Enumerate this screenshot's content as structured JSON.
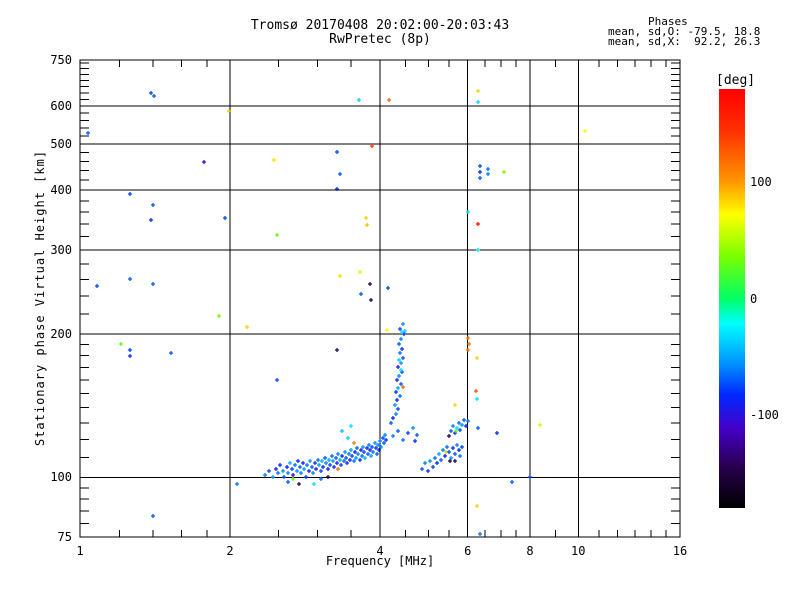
{
  "title": "Tromsø 20170408 20:02:00-20:03:43",
  "subtitle": "RwPretec (8p)",
  "stats": {
    "header": "Phases",
    "line_o": "mean, sd,O: -79.5, 18.8",
    "line_x": "mean, sd,X:  92.2, 26.3"
  },
  "chart_data": {
    "type": "scatter",
    "title": "Tromsø 20170408 20:02:00-20:03:43",
    "subtitle": "RwPretec (8p)",
    "xlabel": "Frequency [MHz]",
    "ylabel": "Stationary phase Virtual Height [km]",
    "x_scale": "log",
    "y_scale": "log",
    "xlim": [
      1,
      16
    ],
    "ylim": [
      75,
      750
    ],
    "x_ticks": [
      1,
      2,
      4,
      6,
      8,
      10,
      16
    ],
    "y_ticks": [
      75,
      100,
      200,
      300,
      400,
      500,
      600,
      750
    ],
    "x_gridlines": [
      2,
      4,
      6,
      8,
      10
    ],
    "y_gridlines": [
      100,
      200,
      300,
      400,
      500,
      600
    ],
    "x_minor_ticks": [
      1.2,
      1.4,
      1.6,
      1.8,
      2.5,
      3,
      3.5,
      4.5,
      5,
      5.5,
      6.5,
      7,
      7.5,
      9,
      11,
      12,
      13,
      14,
      15
    ],
    "y_minor_ticks": [
      80,
      85,
      90,
      95,
      110,
      120,
      130,
      140,
      150,
      160,
      170,
      180,
      190,
      220,
      240,
      260,
      280,
      320,
      340,
      360,
      380,
      420,
      440,
      460,
      480,
      520,
      540,
      560,
      580,
      620,
      640,
      660,
      680,
      700,
      720,
      740
    ],
    "grid": true,
    "colorbar": {
      "label": "[deg]",
      "ticks": [
        100,
        0,
        -100
      ],
      "range": [
        -180,
        180
      ],
      "stops": [
        [
          0.0,
          "#ff0000"
        ],
        [
          0.1,
          "#ff3000"
        ],
        [
          0.22,
          "#ff9600"
        ],
        [
          0.3,
          "#ffff00"
        ],
        [
          0.4,
          "#78ff00"
        ],
        [
          0.5,
          "#00ff64"
        ],
        [
          0.56,
          "#00ffff"
        ],
        [
          0.66,
          "#008cff"
        ],
        [
          0.73,
          "#0028ff"
        ],
        [
          0.81,
          "#4600c8"
        ],
        [
          0.9,
          "#280050"
        ],
        [
          1.0,
          "#000000"
        ]
      ]
    },
    "points_format": [
      "frequency_MHz",
      "virtual_height_km",
      "phase_deg"
    ],
    "points": [
      [
        2.35,
        101,
        -60
      ],
      [
        2.4,
        103,
        -75
      ],
      [
        2.44,
        100,
        -50
      ],
      [
        2.47,
        104,
        -90
      ],
      [
        2.5,
        102,
        -65
      ],
      [
        2.52,
        106,
        -80
      ],
      [
        2.55,
        103,
        -55
      ],
      [
        2.57,
        100,
        -70
      ],
      [
        2.6,
        105,
        -85
      ],
      [
        2.62,
        98,
        -70
      ],
      [
        2.62,
        102,
        -60
      ],
      [
        2.64,
        107,
        -45
      ],
      [
        2.66,
        104,
        -75
      ],
      [
        2.68,
        99,
        30
      ],
      [
        2.68,
        101,
        -95
      ],
      [
        2.7,
        106,
        -65
      ],
      [
        2.72,
        103,
        -55
      ],
      [
        2.74,
        108,
        -80
      ],
      [
        2.75,
        97,
        -145
      ],
      [
        2.76,
        105,
        -70
      ],
      [
        2.78,
        102,
        -60
      ],
      [
        2.8,
        107,
        -90
      ],
      [
        2.82,
        104,
        -50
      ],
      [
        2.84,
        100,
        -75
      ],
      [
        2.86,
        106,
        -65
      ],
      [
        2.88,
        103,
        -85
      ],
      [
        2.9,
        108,
        -55
      ],
      [
        2.92,
        105,
        -70
      ],
      [
        2.94,
        102,
        -60
      ],
      [
        2.95,
        97,
        -30
      ],
      [
        2.96,
        107,
        -80
      ],
      [
        2.98,
        104,
        -95
      ],
      [
        3.0,
        109,
        -65
      ],
      [
        3.02,
        106,
        -55
      ],
      [
        3.04,
        103,
        -75
      ],
      [
        3.05,
        99,
        -65
      ],
      [
        3.06,
        108,
        -45
      ],
      [
        3.08,
        105,
        -85
      ],
      [
        3.1,
        110,
        -70
      ],
      [
        3.12,
        107,
        -60
      ],
      [
        3.14,
        104,
        -90
      ],
      [
        3.15,
        100,
        -150
      ],
      [
        3.16,
        109,
        -50
      ],
      [
        3.18,
        106,
        -75
      ],
      [
        3.2,
        111,
        -65
      ],
      [
        3.22,
        108,
        -55
      ],
      [
        3.24,
        105,
        -80
      ],
      [
        3.26,
        110,
        -70
      ],
      [
        3.28,
        107,
        -95
      ],
      [
        3.3,
        104,
        120
      ],
      [
        3.3,
        112,
        -60
      ],
      [
        3.32,
        109,
        -50
      ],
      [
        3.34,
        106,
        -75
      ],
      [
        3.35,
        125,
        -40
      ],
      [
        3.36,
        111,
        -85
      ],
      [
        3.38,
        108,
        -65
      ],
      [
        3.4,
        113,
        -55
      ],
      [
        3.42,
        110,
        -70
      ],
      [
        3.44,
        107,
        -80
      ],
      [
        3.45,
        121,
        -35
      ],
      [
        3.46,
        112,
        -60
      ],
      [
        3.48,
        109,
        -90
      ],
      [
        3.5,
        114,
        -50
      ],
      [
        3.5,
        128,
        -30
      ],
      [
        3.52,
        111,
        -75
      ],
      [
        3.54,
        108,
        -65
      ],
      [
        3.55,
        118,
        110
      ],
      [
        3.56,
        113,
        -85
      ],
      [
        3.58,
        110,
        -55
      ],
      [
        3.6,
        115,
        -70
      ],
      [
        3.62,
        112,
        -60
      ],
      [
        3.64,
        109,
        -80
      ],
      [
        3.66,
        114,
        -95
      ],
      [
        3.68,
        111,
        -65
      ],
      [
        3.7,
        116,
        -55
      ],
      [
        3.72,
        113,
        -75
      ],
      [
        3.74,
        110,
        -45
      ],
      [
        3.76,
        115,
        -85
      ],
      [
        3.78,
        112,
        -70
      ],
      [
        3.8,
        117,
        -60
      ],
      [
        3.82,
        114,
        -90
      ],
      [
        3.84,
        111,
        -50
      ],
      [
        3.86,
        116,
        -75
      ],
      [
        3.88,
        113,
        -65
      ],
      [
        3.9,
        118,
        -55
      ],
      [
        3.92,
        115,
        -80
      ],
      [
        3.94,
        112,
        -70
      ],
      [
        3.96,
        117,
        -60
      ],
      [
        3.98,
        114,
        -85
      ],
      [
        4.0,
        119,
        -65
      ],
      [
        4.02,
        116,
        -55
      ],
      [
        4.05,
        121,
        -75
      ],
      [
        4.08,
        118,
        -70
      ],
      [
        4.1,
        123,
        -60
      ],
      [
        4.12,
        120,
        -80
      ],
      [
        4.25,
        122,
        -60
      ],
      [
        4.35,
        125,
        -70
      ],
      [
        4.45,
        120,
        -65
      ],
      [
        4.55,
        124,
        -75
      ],
      [
        4.65,
        127,
        -55
      ],
      [
        4.7,
        119,
        -80
      ],
      [
        4.75,
        123,
        -70
      ],
      [
        4.2,
        130,
        -70
      ],
      [
        4.25,
        133,
        -85
      ],
      [
        4.3,
        136,
        -60
      ],
      [
        4.35,
        139,
        -75
      ],
      [
        4.28,
        142,
        -55
      ],
      [
        4.33,
        145,
        -90
      ],
      [
        4.38,
        148,
        -65
      ],
      [
        4.3,
        151,
        -80
      ],
      [
        4.35,
        154,
        -50
      ],
      [
        4.45,
        155,
        120
      ],
      [
        4.4,
        157,
        -70
      ],
      [
        4.32,
        160,
        -85
      ],
      [
        4.37,
        163,
        -60
      ],
      [
        4.42,
        166,
        -75
      ],
      [
        4.4,
        168,
        -30
      ],
      [
        4.35,
        170,
        -95
      ],
      [
        4.4,
        174,
        -55
      ],
      [
        4.36,
        176,
        -35
      ],
      [
        4.45,
        178,
        -70
      ],
      [
        4.38,
        182,
        -65
      ],
      [
        4.43,
        186,
        -80
      ],
      [
        4.36,
        190,
        -70
      ],
      [
        4.41,
        195,
        -60
      ],
      [
        4.46,
        200,
        -85
      ],
      [
        4.39,
        205,
        -75
      ],
      [
        4.44,
        210,
        -55
      ],
      [
        4.85,
        104,
        -70
      ],
      [
        4.92,
        107,
        -60
      ],
      [
        5.0,
        103,
        -80
      ],
      [
        5.05,
        108,
        -55
      ],
      [
        5.1,
        105,
        -75
      ],
      [
        5.15,
        110,
        -65
      ],
      [
        5.2,
        107,
        -85
      ],
      [
        5.25,
        112,
        -50
      ],
      [
        5.3,
        109,
        -70
      ],
      [
        5.35,
        114,
        -60
      ],
      [
        5.4,
        111,
        -90
      ],
      [
        5.42,
        113,
        85
      ],
      [
        5.45,
        116,
        -65
      ],
      [
        5.5,
        113,
        -75
      ],
      [
        5.52,
        108,
        -150
      ],
      [
        5.55,
        110,
        -55
      ],
      [
        5.6,
        115,
        -80
      ],
      [
        5.65,
        112,
        -70
      ],
      [
        5.66,
        108,
        -140
      ],
      [
        5.7,
        117,
        -60
      ],
      [
        5.75,
        114,
        -85
      ],
      [
        5.8,
        111,
        -65
      ],
      [
        5.85,
        116,
        -75
      ],
      [
        5.5,
        122,
        -145
      ],
      [
        5.55,
        125,
        -70
      ],
      [
        5.6,
        128,
        -60
      ],
      [
        5.65,
        124,
        -80
      ],
      [
        5.67,
        125,
        30
      ],
      [
        5.7,
        127,
        -30
      ],
      [
        5.75,
        130,
        -65
      ],
      [
        5.8,
        126,
        -75
      ],
      [
        5.85,
        129,
        -55
      ],
      [
        5.9,
        132,
        -70
      ],
      [
        5.95,
        128,
        -85
      ],
      [
        6.0,
        131,
        -60
      ],
      [
        6.3,
        127,
        -70
      ],
      [
        6.86,
        124,
        -80
      ],
      [
        5.66,
        142,
        85
      ],
      [
        6.35,
        450,
        -75
      ],
      [
        6.35,
        436,
        -80
      ],
      [
        6.35,
        424,
        -70
      ],
      [
        6.6,
        444,
        -65
      ],
      [
        6.6,
        432,
        -60
      ],
      [
        6.3,
        300,
        -30
      ],
      [
        1.39,
        640,
        -75
      ],
      [
        1.41,
        630,
        -70
      ],
      [
        1.99,
        585,
        85
      ],
      [
        1.04,
        527,
        -70
      ],
      [
        1.77,
        459,
        -110
      ],
      [
        2.45,
        462,
        80
      ],
      [
        1.26,
        392,
        -75
      ],
      [
        1.4,
        372,
        -70
      ],
      [
        1.39,
        347,
        -80
      ],
      [
        1.95,
        349,
        -75
      ],
      [
        2.49,
        323,
        30
      ],
      [
        3.63,
        617,
        -35
      ],
      [
        4.17,
        617,
        120
      ],
      [
        6.3,
        645,
        85
      ],
      [
        6.3,
        613,
        -35
      ],
      [
        3.86,
        495,
        140
      ],
      [
        3.28,
        482,
        -75
      ],
      [
        3.32,
        432,
        -70
      ],
      [
        3.28,
        403,
        -80
      ],
      [
        6.0,
        360,
        -30
      ],
      [
        6.3,
        339,
        170
      ],
      [
        3.75,
        349,
        85
      ],
      [
        3.77,
        338,
        90
      ],
      [
        10.3,
        533,
        70
      ],
      [
        7.1,
        437,
        40
      ],
      [
        1.26,
        261,
        -70
      ],
      [
        1.08,
        252,
        -75
      ],
      [
        1.4,
        254,
        -70
      ],
      [
        1.9,
        218,
        35
      ],
      [
        2.16,
        207,
        85
      ],
      [
        1.21,
        190,
        30
      ],
      [
        1.26,
        185,
        -75
      ],
      [
        1.26,
        180,
        -80
      ],
      [
        1.52,
        182,
        -70
      ],
      [
        2.49,
        160,
        -75
      ],
      [
        3.32,
        264,
        80
      ],
      [
        3.64,
        270,
        60
      ],
      [
        3.82,
        254,
        -140
      ],
      [
        4.15,
        249,
        -75
      ],
      [
        3.66,
        242,
        -70
      ],
      [
        3.84,
        235,
        -145
      ],
      [
        4.13,
        204,
        75
      ],
      [
        4.42,
        202,
        -30
      ],
      [
        4.48,
        203,
        -35
      ],
      [
        3.28,
        185,
        -140
      ],
      [
        6.0,
        196,
        115
      ],
      [
        6.03,
        190,
        120
      ],
      [
        6.0,
        185,
        118
      ],
      [
        6.27,
        178,
        85
      ],
      [
        6.22,
        152,
        125
      ],
      [
        6.27,
        146,
        -30
      ],
      [
        2.07,
        97,
        -60
      ],
      [
        1.4,
        83,
        -70
      ],
      [
        6.35,
        76,
        -65
      ],
      [
        7.36,
        98,
        -70
      ],
      [
        8.0,
        100,
        -75
      ],
      [
        8.38,
        129,
        60
      ],
      [
        6.27,
        87,
        85
      ]
    ]
  }
}
